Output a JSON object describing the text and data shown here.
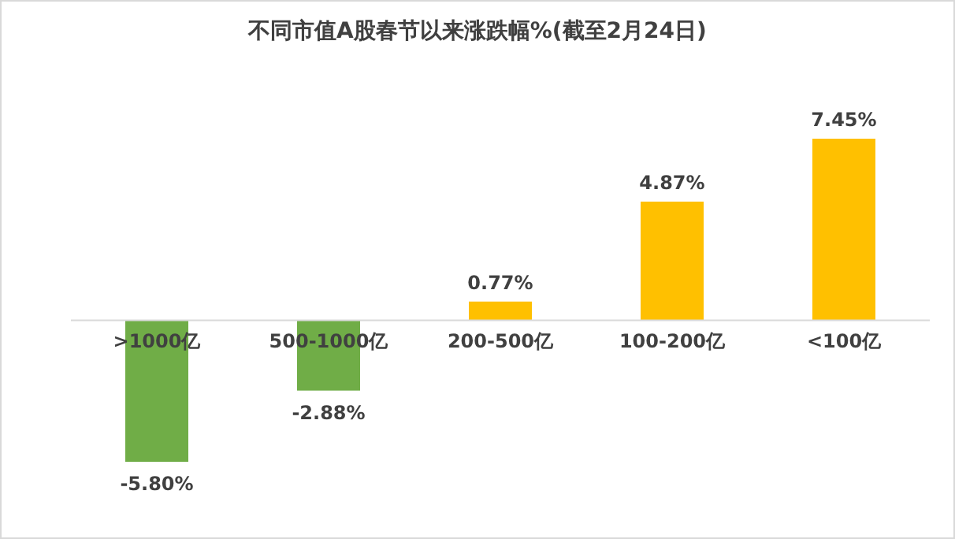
{
  "chart_data": {
    "type": "bar",
    "title": "不同市值A股春节以来涨跌幅%(截至2月24日)",
    "categories": [
      ">1000亿",
      "500-1000亿",
      "200-500亿",
      "100-200亿",
      "<100亿"
    ],
    "values": [
      -5.8,
      -2.88,
      0.77,
      4.87,
      7.45
    ],
    "colors": [
      "#70ad47",
      "#70ad47",
      "#ffc000",
      "#ffc000",
      "#ffc000"
    ],
    "value_labels": [
      "-5.80%",
      "-2.88%",
      "0.77%",
      "4.87%",
      "7.45%"
    ]
  }
}
